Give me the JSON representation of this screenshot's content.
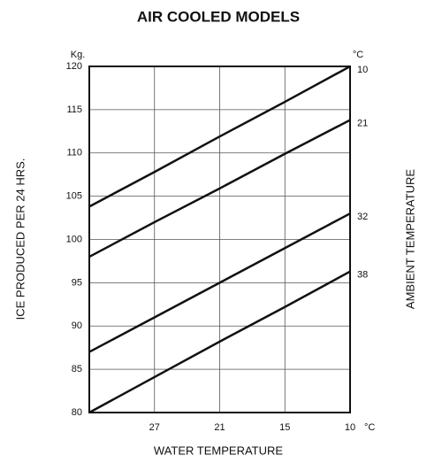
{
  "chart_data": {
    "type": "line",
    "title": "AIR COOLED MODELS",
    "y_label": "ICE PRODUCED PER 24 HRS.",
    "y2_label": "AMBIENT TEMPERATURE",
    "x_label": "WATER TEMPERATURE",
    "y_unit": "Kg.",
    "series_unit": "°C",
    "x_unit": "°C",
    "categories": [
      null,
      "27",
      "21",
      "15",
      "10"
    ],
    "series": [
      {
        "name": "10",
        "color": "#111111",
        "values": [
          103.8,
          107.8,
          111.9,
          115.9,
          120
        ]
      },
      {
        "name": "21",
        "color": "#111111",
        "values": [
          98,
          102,
          105.9,
          109.9,
          113.8
        ]
      },
      {
        "name": "32",
        "color": "#111111",
        "values": [
          87,
          91,
          95,
          99,
          103
        ]
      },
      {
        "name": "38",
        "color": "#111111",
        "values": [
          80,
          84.1,
          88.2,
          92.2,
          96.3
        ]
      }
    ],
    "ylim": [
      80,
      120
    ],
    "yticks": [
      80,
      85,
      90,
      95,
      100,
      105,
      110,
      115,
      120
    ],
    "grid": true
  }
}
